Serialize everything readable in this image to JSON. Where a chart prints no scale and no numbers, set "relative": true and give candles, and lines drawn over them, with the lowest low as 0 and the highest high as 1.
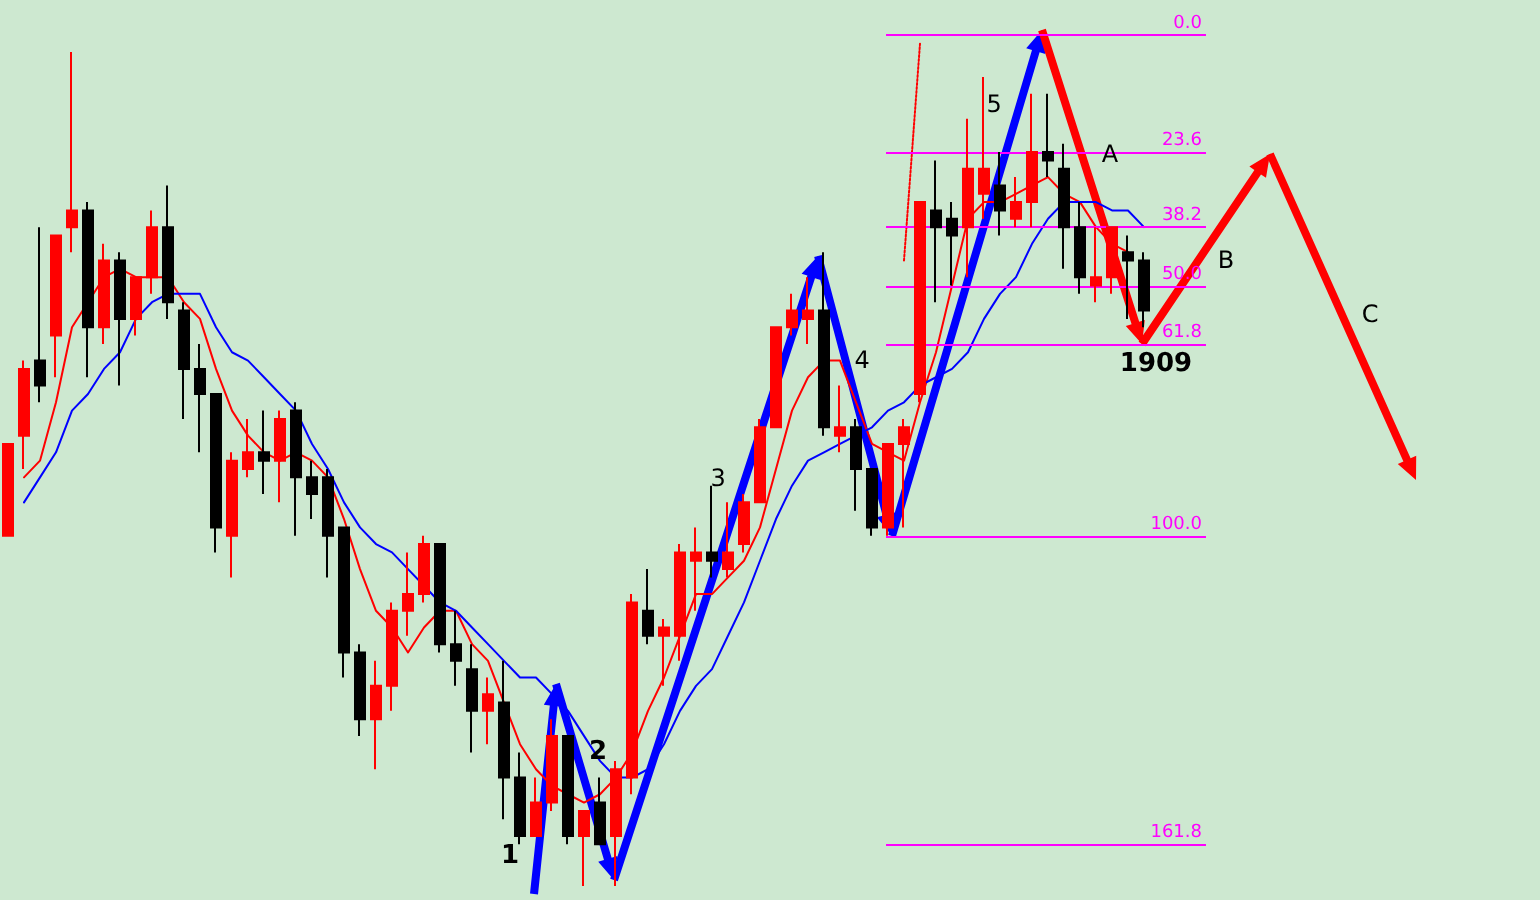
{
  "chart_data": {
    "type": "candlestick",
    "relative": true,
    "tick_labels": false,
    "categories": [
      null,
      null,
      null,
      null,
      null,
      null,
      null,
      null,
      null,
      null,
      null,
      null,
      null,
      null,
      null,
      null,
      null,
      null,
      null,
      null,
      null,
      null,
      null,
      null,
      null,
      null,
      null,
      null,
      null,
      null,
      null,
      null,
      null,
      null,
      null,
      null,
      null,
      null,
      null,
      null,
      null,
      null,
      null,
      null,
      null,
      null,
      null,
      null,
      null,
      null,
      null,
      null,
      null,
      null,
      null,
      null,
      null,
      null,
      null,
      null,
      null,
      null,
      null,
      null,
      null,
      null,
      null,
      null,
      null,
      null,
      null,
      null
    ],
    "colors": [
      "#ff0000",
      "#ff0000",
      "#000000",
      "#ff0000",
      "#ff0000",
      "#000000",
      "#ff0000",
      "#000000",
      "#ff0000",
      "#ff0000",
      "#000000",
      "#000000",
      "#000000",
      "#000000",
      "#ff0000",
      "#ff0000",
      "#000000",
      "#ff0000",
      "#000000",
      "#000000",
      "#000000",
      "#000000",
      "#000000",
      "#ff0000",
      "#ff0000",
      "#ff0000",
      "#ff0000",
      "#000000",
      "#000000",
      "#000000",
      "#ff0000",
      "#000000",
      "#000000",
      "#ff0000",
      "#ff0000",
      "#000000",
      "#ff0000",
      "#000000",
      "#ff0000",
      "#ff0000",
      "#000000",
      "#ff0000",
      "#ff0000",
      "#ff0000",
      "#000000",
      "#ff0000",
      "#ff0000",
      "#ff0000",
      "#ff0000",
      "#ff0000",
      "#ff0000",
      "#000000",
      "#ff0000",
      "#000000",
      "#000000",
      "#ff0000",
      "#ff0000",
      "#ff0000",
      "#000000",
      "#000000",
      "#ff0000",
      "#ff0000",
      "#000000",
      "#ff0000",
      "#ff0000",
      "#000000",
      "#000000",
      "#000000",
      "#ff0000",
      "#ff0000",
      "#000000",
      "#000000"
    ],
    "ohlc": [
      [
        0.42,
        0.53,
        0.42,
        0.53
      ],
      [
        0.54,
        0.63,
        0.5,
        0.62
      ],
      [
        0.63,
        0.79,
        0.58,
        0.6
      ],
      [
        0.66,
        0.78,
        0.61,
        0.78
      ],
      [
        0.79,
        1,
        0.76,
        0.81
      ],
      [
        0.81,
        0.82,
        0.61,
        0.67
      ],
      [
        0.67,
        0.77,
        0.65,
        0.75
      ],
      [
        0.75,
        0.76,
        0.6,
        0.68
      ],
      [
        0.68,
        0.73,
        0.66,
        0.73
      ],
      [
        0.73,
        0.81,
        0.71,
        0.79
      ],
      [
        0.79,
        0.84,
        0.68,
        0.7
      ],
      [
        0.69,
        0.7,
        0.56,
        0.62
      ],
      [
        0.62,
        0.65,
        0.52,
        0.59
      ],
      [
        0.59,
        0.59,
        0.4,
        0.43
      ],
      [
        0.42,
        0.52,
        0.37,
        0.51
      ],
      [
        0.5,
        0.56,
        0.49,
        0.52
      ],
      [
        0.52,
        0.57,
        0.47,
        0.51
      ],
      [
        0.51,
        0.57,
        0.46,
        0.56
      ],
      [
        0.57,
        0.58,
        0.42,
        0.49
      ],
      [
        0.49,
        0.51,
        0.44,
        0.47
      ],
      [
        0.49,
        0.5,
        0.37,
        0.42
      ],
      [
        0.43,
        0.43,
        0.25,
        0.28
      ],
      [
        0.28,
        0.29,
        0.18,
        0.2
      ],
      [
        0.2,
        0.27,
        0.14,
        0.24
      ],
      [
        0.24,
        0.34,
        0.21,
        0.33
      ],
      [
        0.33,
        0.4,
        0.3,
        0.35
      ],
      [
        0.35,
        0.42,
        0.34,
        0.41
      ],
      [
        0.41,
        0.41,
        0.28,
        0.29
      ],
      [
        0.29,
        0.33,
        0.24,
        0.27
      ],
      [
        0.26,
        0.29,
        0.16,
        0.21
      ],
      [
        0.21,
        0.25,
        0.17,
        0.23
      ],
      [
        0.22,
        0.27,
        0.08,
        0.13
      ],
      [
        0.13,
        0.16,
        0.05,
        0.06
      ],
      [
        0.06,
        0.13,
        0.06,
        0.1
      ],
      [
        0.1,
        0.2,
        0.09,
        0.18
      ],
      [
        0.18,
        0.18,
        0.05,
        0.06
      ],
      [
        0.06,
        0.09,
        0,
        0.09
      ],
      [
        0.1,
        0.13,
        0.05,
        0.05
      ],
      [
        0.06,
        0.15,
        0,
        0.14
      ],
      [
        0.13,
        0.35,
        0.11,
        0.34
      ],
      [
        0.33,
        0.38,
        0.29,
        0.3
      ],
      [
        0.3,
        0.32,
        0.24,
        0.31
      ],
      [
        0.3,
        0.41,
        0.27,
        0.4
      ],
      [
        0.39,
        0.43,
        0.33,
        0.4
      ],
      [
        0.4,
        0.48,
        0.37,
        0.39
      ],
      [
        0.38,
        0.46,
        0.37,
        0.4
      ],
      [
        0.41,
        0.47,
        0.4,
        0.46
      ],
      [
        0.46,
        0.56,
        0.46,
        0.55
      ],
      [
        0.55,
        0.67,
        0.55,
        0.67
      ],
      [
        0.67,
        0.71,
        0.66,
        0.69
      ],
      [
        0.68,
        0.73,
        0.65,
        0.69
      ],
      [
        0.69,
        0.76,
        0.54,
        0.55
      ],
      [
        0.54,
        0.6,
        0.52,
        0.55
      ],
      [
        0.55,
        0.56,
        0.45,
        0.5
      ],
      [
        0.5,
        0.5,
        0.42,
        0.43
      ],
      [
        0.43,
        0.53,
        0.42,
        0.53
      ],
      [
        0.53,
        0.56,
        0.43,
        0.55
      ],
      [
        0.59,
        0.82,
        0.58,
        0.82
      ],
      [
        0.81,
        0.87,
        0.7,
        0.79
      ],
      [
        0.8,
        0.82,
        0.72,
        0.78
      ],
      [
        0.79,
        0.92,
        0.73,
        0.86
      ],
      [
        0.83,
        0.97,
        0.8,
        0.86
      ],
      [
        0.84,
        0.88,
        0.78,
        0.81
      ],
      [
        0.8,
        0.85,
        0.79,
        0.82
      ],
      [
        0.82,
        0.95,
        0.79,
        0.88
      ],
      [
        0.88,
        0.95,
        0.85,
        0.87
      ],
      [
        0.86,
        0.89,
        0.74,
        0.79
      ],
      [
        0.79,
        0.82,
        0.71,
        0.73
      ],
      [
        0.72,
        0.79,
        0.7,
        0.73
      ],
      [
        0.73,
        0.79,
        0.71,
        0.79
      ],
      [
        0.76,
        0.78,
        0.68,
        0.75
      ],
      [
        0.75,
        0.76,
        0.67,
        0.69
      ]
    ],
    "series": [
      {
        "type": "line",
        "color": "#ff0000",
        "values": [
          null,
          0.49,
          0.51,
          0.58,
          0.67,
          0.7,
          0.73,
          0.74,
          0.73,
          0.73,
          0.73,
          0.7,
          0.68,
          0.62,
          0.57,
          0.54,
          0.52,
          0.51,
          0.52,
          0.51,
          0.49,
          0.44,
          0.38,
          0.33,
          0.31,
          0.28,
          0.31,
          0.33,
          0.33,
          0.29,
          0.27,
          0.22,
          0.17,
          0.14,
          0.12,
          0.11,
          0.1,
          0.11,
          0.13,
          0.16,
          0.21,
          0.25,
          0.3,
          0.35,
          0.35,
          0.37,
          0.39,
          0.43,
          0.5,
          0.57,
          0.61,
          0.63,
          0.63,
          0.58,
          0.53,
          0.52,
          0.51,
          0.58,
          0.64,
          0.72,
          0.8,
          0.82,
          0.82,
          0.83,
          0.84,
          0.85,
          0.83,
          0.82,
          0.79,
          0.77,
          0.76,
          null
        ]
      },
      {
        "type": "line",
        "color": "#0000ff",
        "values": [
          null,
          0.46,
          0.49,
          0.52,
          0.57,
          0.59,
          0.62,
          0.64,
          0.68,
          0.7,
          0.71,
          0.71,
          0.71,
          0.67,
          0.64,
          0.63,
          0.61,
          0.59,
          0.57,
          0.53,
          0.5,
          0.46,
          0.43,
          0.41,
          0.4,
          0.38,
          0.36,
          0.34,
          0.33,
          0.31,
          0.29,
          0.27,
          0.25,
          0.25,
          0.23,
          0.21,
          0.18,
          0.15,
          0.13,
          0.13,
          0.14,
          0.17,
          0.21,
          0.24,
          0.26,
          0.3,
          0.34,
          0.39,
          0.44,
          0.48,
          0.51,
          0.52,
          0.53,
          0.54,
          0.55,
          0.57,
          0.58,
          0.6,
          0.61,
          0.62,
          0.64,
          0.68,
          0.71,
          0.73,
          0.77,
          0.8,
          0.82,
          0.82,
          0.82,
          0.81,
          0.81,
          0.79
        ]
      },
      {
        "type": "line",
        "color": "#ff0000",
        "line_style": "dotted",
        "values": [
          null,
          null,
          null,
          null,
          null,
          null,
          null,
          null,
          null,
          null,
          null,
          null,
          null,
          null,
          null,
          null,
          null,
          null,
          null,
          null,
          null,
          null,
          null,
          null,
          null,
          null,
          null,
          null,
          null,
          null,
          null,
          null,
          null,
          null,
          null,
          null,
          null,
          null,
          null,
          null,
          null,
          null,
          null,
          null,
          null,
          null,
          null,
          null,
          null,
          null,
          null,
          null,
          null,
          null,
          null,
          null,
          0.75,
          1.01,
          null,
          null,
          null,
          null,
          null,
          null,
          null,
          null,
          null,
          null,
          null,
          null,
          null,
          null
        ]
      }
    ],
    "ref_lines": [
      {
        "axis": "y",
        "value": 1.02,
        "color": "#ff00ff"
      },
      {
        "axis": "y",
        "value": 0.88,
        "color": "#ff00ff"
      },
      {
        "axis": "y",
        "value": 0.79,
        "color": "#ff00ff"
      },
      {
        "axis": "y",
        "value": 0.72,
        "color": "#ff00ff"
      },
      {
        "axis": "y",
        "value": 0.65,
        "color": "#ff00ff"
      },
      {
        "axis": "y",
        "value": 0.42,
        "color": "#ff00ff"
      },
      {
        "axis": "y",
        "value": 0.05,
        "color": "#ff00ff"
      }
    ],
    "annotations": [
      "1",
      "2",
      "3",
      "4",
      "5",
      "A",
      "B",
      "C",
      "1909",
      {
        "text": "0.0",
        "y": 1.02
      },
      {
        "text": "23.6",
        "y": 0.88
      },
      {
        "text": "38.2",
        "y": 0.79
      },
      {
        "text": "50.0",
        "y": 0.72
      },
      {
        "text": "61.8",
        "y": 0.65
      },
      {
        "text": "100.0",
        "y": 0.42
      },
      {
        "text": "161.8",
        "y": 0.05
      }
    ]
  }
}
